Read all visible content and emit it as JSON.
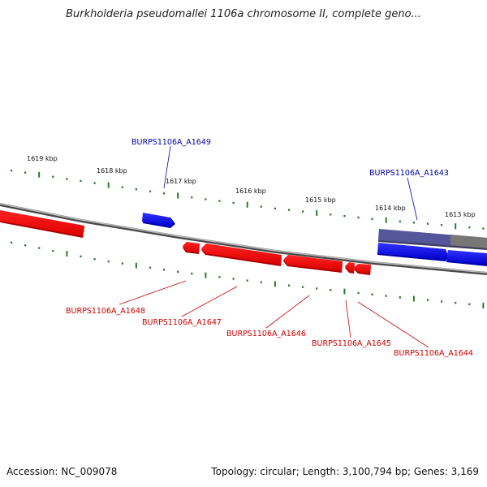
{
  "title": "Burkholderia pseudomallei 1106a chromosome II, complete geno...",
  "footer": {
    "accession": "Accession: NC_009078",
    "topology": "Topology: circular; Length: 3,100,794 bp; Genes: 3,169"
  },
  "colors": {
    "forward_gene": "#0000ff",
    "reverse_gene": "#ff0000",
    "forward_label": "#0000aa",
    "reverse_label": "#cc0000",
    "highlight_gene": "#555599",
    "backbone": "#7a7a7a",
    "tick": "#2a7a2a"
  },
  "scale_ticks": [
    {
      "label": "1619 kbp"
    },
    {
      "label": "1618 kbp"
    },
    {
      "label": "1617 kbp"
    },
    {
      "label": "1616 kbp"
    },
    {
      "label": "1615 kbp"
    },
    {
      "label": "1614 kbp"
    },
    {
      "label": "1613 kbp"
    }
  ],
  "genes": [
    {
      "id": "BURPS1106A_A1649",
      "strand": "forward"
    },
    {
      "id": "BURPS1106A_A1643",
      "strand": "forward"
    },
    {
      "id": "BURPS1106A_A1648",
      "strand": "reverse"
    },
    {
      "id": "BURPS1106A_A1647",
      "strand": "reverse"
    },
    {
      "id": "BURPS1106A_A1646",
      "strand": "reverse"
    },
    {
      "id": "BURPS1106A_A1645",
      "strand": "reverse"
    },
    {
      "id": "BURPS1106A_A1644",
      "strand": "reverse"
    }
  ]
}
